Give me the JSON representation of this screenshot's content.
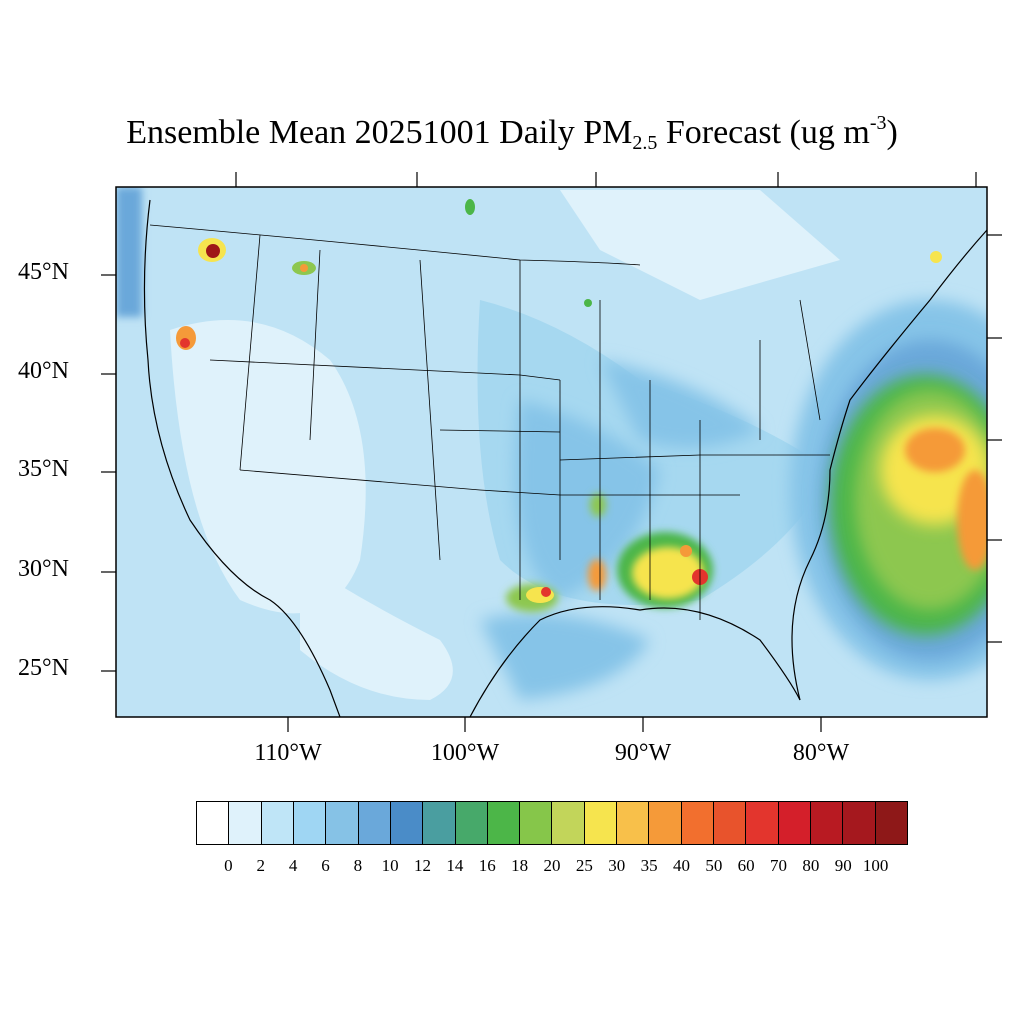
{
  "title": {
    "prefix": "Ensemble Mean 20251001 Daily PM",
    "subscript": "2.5",
    "middle": " Forecast (ug m",
    "superscript": "-3",
    "suffix": ")"
  },
  "map": {
    "lat_labels": [
      "45°N",
      "40°N",
      "35°N",
      "30°N",
      "25°N"
    ],
    "lon_labels": [
      "110°W",
      "100°W",
      "90°W",
      "80°W"
    ],
    "colors": {
      "background_low": "#bfe3f5",
      "very_low": "#dff2fb",
      "low": "#a6d8f0",
      "moderate": "#86c4e8",
      "medium": "#6aa8da",
      "green": "#4cb648",
      "lightgreen": "#8dc74f",
      "yellow": "#f6e44e",
      "orange": "#f59a39",
      "red": "#e3352d",
      "darkred": "#9e1717"
    }
  },
  "colorbar": {
    "levels": [
      "0",
      "2",
      "4",
      "6",
      "8",
      "10",
      "12",
      "14",
      "16",
      "18",
      "20",
      "25",
      "30",
      "35",
      "40",
      "50",
      "60",
      "70",
      "80",
      "90",
      "100"
    ],
    "colors": [
      "#ffffff",
      "#dff2fb",
      "#bfe5f7",
      "#9fd6f3",
      "#86c2e6",
      "#6aa8da",
      "#4a8cc8",
      "#4a9ea0",
      "#47a96a",
      "#4cb648",
      "#86c64a",
      "#c2d55a",
      "#f6e44e",
      "#f8c04a",
      "#f59a39",
      "#f26f2e",
      "#e8532c",
      "#e3352d",
      "#d41f2a",
      "#b81a22",
      "#a5181e",
      "#8e1818"
    ]
  }
}
